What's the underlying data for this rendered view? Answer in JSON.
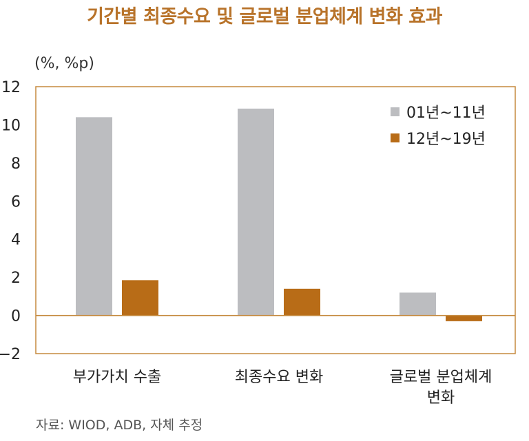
{
  "header": {
    "title": "기간별 최종수요 및 글로벌 분업체계 변화 효과",
    "unit": "(%, %p)"
  },
  "footer": {
    "source": "자료: WIOD, ADB, 자체 추정"
  },
  "colors": {
    "title": "#b8732a",
    "frame": "#c58a3f",
    "series1": "#bcbdc0",
    "series2": "#b86c17"
  },
  "chart_data": {
    "type": "bar",
    "title": "기간별 최종수요 및 글로벌 분업체계 변화 효과",
    "ylabel": "(%, %p)",
    "ylim": [
      -2,
      12
    ],
    "yticks": [
      "12",
      "10",
      "8",
      "6",
      "4",
      "2",
      "0",
      "−2"
    ],
    "categories": [
      [
        "부가가치 수출"
      ],
      [
        "최종수요 변화"
      ],
      [
        "글로벌 분업체계",
        "변화"
      ]
    ],
    "series": [
      {
        "name": "01년~11년",
        "values": [
          10.4,
          10.85,
          1.2
        ]
      },
      {
        "name": "12년~19년",
        "values": [
          1.85,
          1.4,
          -0.3
        ]
      }
    ],
    "legend": "top-right",
    "grid": false
  }
}
